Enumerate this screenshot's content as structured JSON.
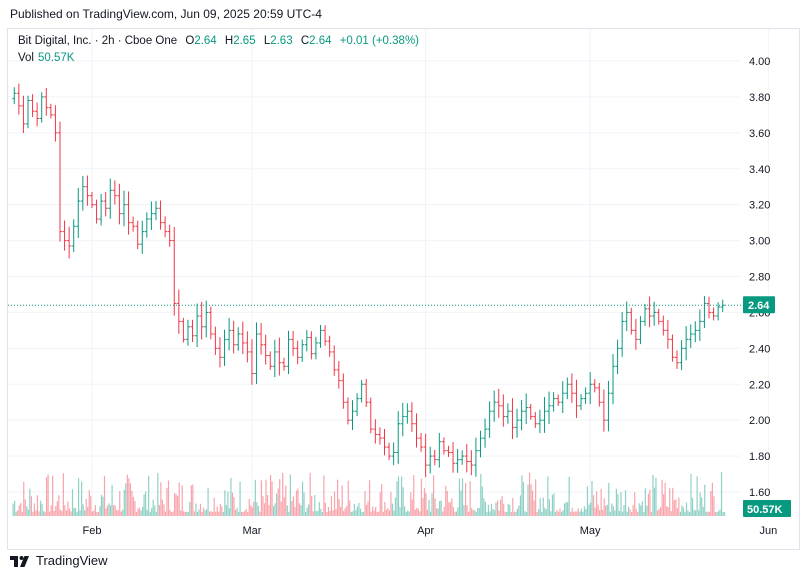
{
  "header": {
    "published": "Published on TradingView.com, Jun 09, 2025 20:59 UTC-4"
  },
  "legend": {
    "symbol": "Bit Digital, Inc. · 2h · Cboe One",
    "o_label": "O",
    "o_value": "2.64",
    "h_label": "H",
    "h_value": "2.65",
    "l_label": "L",
    "l_value": "2.63",
    "c_label": "C",
    "c_value": "2.64",
    "change": "+0.01 (+0.38%)",
    "vol_label": "Vol",
    "vol_value": "50.57K"
  },
  "colors": {
    "up": "#089981",
    "down": "#f23645",
    "grid": "#f0f3fa",
    "price_line": "#089981"
  },
  "footer": {
    "brand": "TradingView"
  },
  "chart_data": {
    "type": "ohlc",
    "title": "Bit Digital, Inc. · 2h · Cboe One",
    "ylim": [
      1.55,
      4.1
    ],
    "y_ticks": [
      "4.00",
      "3.80",
      "3.60",
      "3.40",
      "3.20",
      "3.00",
      "2.80",
      "2.60",
      "2.40",
      "2.20",
      "2.00",
      "1.80",
      "1.60"
    ],
    "x_ticks": [
      {
        "label": "Feb",
        "index": 17
      },
      {
        "label": "Mar",
        "index": 52
      },
      {
        "label": "Apr",
        "index": 90
      },
      {
        "label": "May",
        "index": 126
      },
      {
        "label": "Jun",
        "index": 165
      }
    ],
    "last_price": "2.64",
    "last_volume": "50.57K",
    "close": [
      3.82,
      3.75,
      3.65,
      3.78,
      3.72,
      3.68,
      3.8,
      3.74,
      3.7,
      3.6,
      3.05,
      3.0,
      2.97,
      3.08,
      3.22,
      3.3,
      3.25,
      3.2,
      3.12,
      3.22,
      3.18,
      3.28,
      3.25,
      3.15,
      3.2,
      3.1,
      3.08,
      2.98,
      3.05,
      3.12,
      3.15,
      3.18,
      3.1,
      3.05,
      3.0,
      2.65,
      2.55,
      2.45,
      2.52,
      2.47,
      2.58,
      2.52,
      2.6,
      2.48,
      2.4,
      2.35,
      2.45,
      2.5,
      2.42,
      2.48,
      2.43,
      2.38,
      2.26,
      2.48,
      2.42,
      2.36,
      2.3,
      2.38,
      2.32,
      2.3,
      2.45,
      2.4,
      2.35,
      2.42,
      2.46,
      2.37,
      2.43,
      2.5,
      2.44,
      2.38,
      2.28,
      2.22,
      2.1,
      2.0,
      2.05,
      2.12,
      2.2,
      2.1,
      1.95,
      1.92,
      1.9,
      1.85,
      1.8,
      1.82,
      1.98,
      2.02,
      2.05,
      1.98,
      1.9,
      1.85,
      1.75,
      1.8,
      1.78,
      1.88,
      1.83,
      1.82,
      1.76,
      1.78,
      1.8,
      1.77,
      1.75,
      1.83,
      1.9,
      1.95,
      2.05,
      2.1,
      2.08,
      2.02,
      2.05,
      1.96,
      2.0,
      2.05,
      2.07,
      2.02,
      1.98,
      2.0,
      2.05,
      2.08,
      2.12,
      2.1,
      2.15,
      2.2,
      2.15,
      2.08,
      2.12,
      2.15,
      2.2,
      2.18,
      2.1,
      2.0,
      2.15,
      2.3,
      2.4,
      2.55,
      2.6,
      2.5,
      2.45,
      2.55,
      2.62,
      2.58,
      2.6,
      2.55,
      2.5,
      2.45,
      2.35,
      2.32,
      2.4,
      2.45,
      2.48,
      2.5,
      2.55,
      2.65,
      2.6,
      2.58,
      2.63,
      2.64
    ]
  }
}
